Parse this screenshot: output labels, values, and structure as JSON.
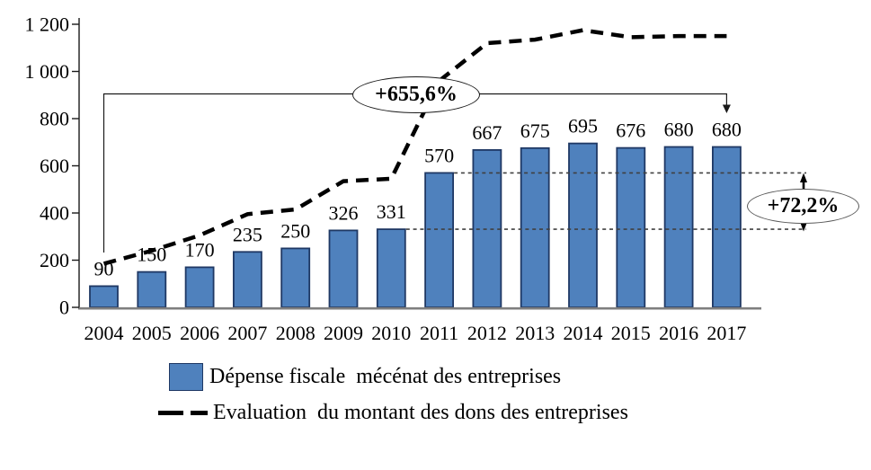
{
  "chart_data": {
    "type": "bar",
    "title": "",
    "categories": [
      "2004",
      "2005",
      "2006",
      "2007",
      "2008",
      "2009",
      "2010",
      "2011",
      "2012",
      "2013",
      "2014",
      "2015",
      "2016",
      "2017"
    ],
    "series": [
      {
        "name": "Dépense fiscale  mécénat des entreprises",
        "type": "bar",
        "color": "#4f81bd",
        "border_color": "#1f3864",
        "values": [
          90,
          150,
          170,
          235,
          250,
          326,
          331,
          570,
          667,
          675,
          695,
          676,
          680,
          680
        ]
      },
      {
        "name": "Evaluation  du montant des dons des entreprises",
        "type": "dashed-line",
        "color": "#000000",
        "values": [
          185,
          240,
          305,
          395,
          415,
          535,
          545,
          960,
          1120,
          1135,
          1175,
          1145,
          1150,
          1150
        ]
      }
    ],
    "y_axis": {
      "min": 0,
      "max": 1200,
      "step": 200,
      "tick_labels": [
        "0",
        "200",
        "400",
        "600",
        "800",
        "1 000",
        "1 200"
      ]
    },
    "grid": "off",
    "legend_position": "bottom",
    "annotations": [
      {
        "label": "+655,6%"
      },
      {
        "label": "+72,2%"
      }
    ]
  },
  "legend": {
    "items": [
      {
        "label": "Dépense fiscale  mécénat des entreprises",
        "swatch": "bar"
      },
      {
        "label": "Evaluation  du montant des dons des entreprises",
        "swatch": "dashed-line"
      }
    ]
  },
  "colors": {
    "bar_fill": "#4f81bd",
    "bar_border": "#1f3864",
    "line": "#000000",
    "guide_dotted": "#404040",
    "baseline": "#7f7f7f",
    "text": "#000000"
  }
}
